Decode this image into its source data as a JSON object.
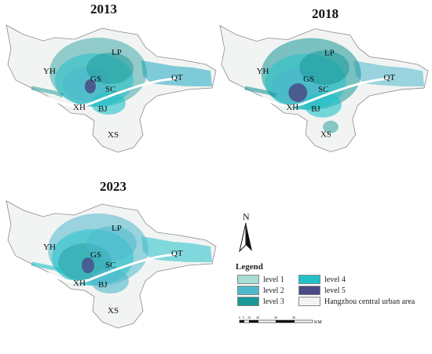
{
  "maps": [
    {
      "year": "2013"
    },
    {
      "year": "2018"
    },
    {
      "year": "2023"
    }
  ],
  "district_labels": [
    "YH",
    "LP",
    "GS",
    "SC",
    "QT",
    "XH",
    "BJ",
    "XS"
  ],
  "north_label": "N",
  "legend": {
    "title": "Legend",
    "items": [
      {
        "label": "level 1",
        "color": "#a8ddd4"
      },
      {
        "label": "level 4",
        "color": "#22c1c8"
      },
      {
        "label": "level 2",
        "color": "#4eb8cc"
      },
      {
        "label": "level 5",
        "color": "#4a4a86"
      },
      {
        "label": "level 3",
        "color": "#1a9898"
      },
      {
        "label": "Hangzhou central urban area",
        "color": "#f2f4f3"
      }
    ]
  },
  "scale": {
    "ticks": [
      "0",
      "5",
      "10",
      "20",
      "30",
      "40"
    ],
    "unit": "KM"
  },
  "colors": {
    "boundary_fill": "#f2f4f3",
    "boundary_stroke": "#8a8a8a",
    "river": "#ffffff"
  }
}
